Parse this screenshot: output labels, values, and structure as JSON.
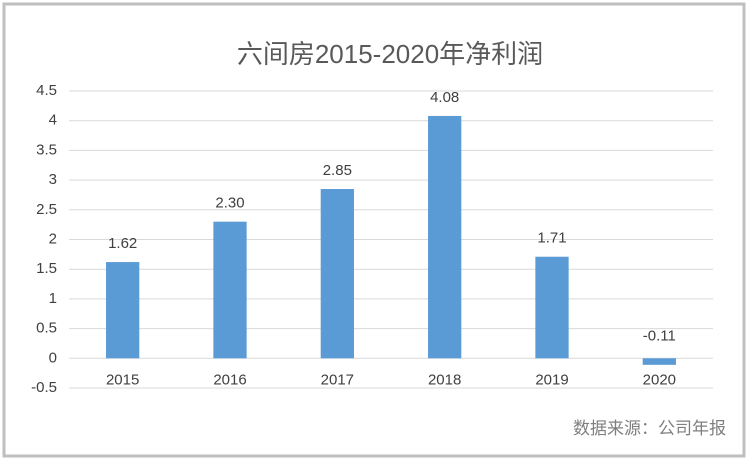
{
  "chart_data": {
    "type": "bar",
    "title": "六间房2015-2020年净利润",
    "categories": [
      "2015",
      "2016",
      "2017",
      "2018",
      "2019",
      "2020"
    ],
    "values": [
      1.62,
      2.3,
      2.85,
      4.08,
      1.71,
      -0.11
    ],
    "value_labels": [
      "1.62",
      "2.30",
      "2.85",
      "4.08",
      "1.71",
      "-0.11"
    ],
    "color": "#5b9bd5",
    "ylim": [
      -0.5,
      4.5
    ],
    "yticks": [
      -0.5,
      0,
      0.5,
      1,
      1.5,
      2,
      2.5,
      3,
      3.5,
      4,
      4.5
    ],
    "grid": true,
    "source": "数据来源：公司年报"
  }
}
